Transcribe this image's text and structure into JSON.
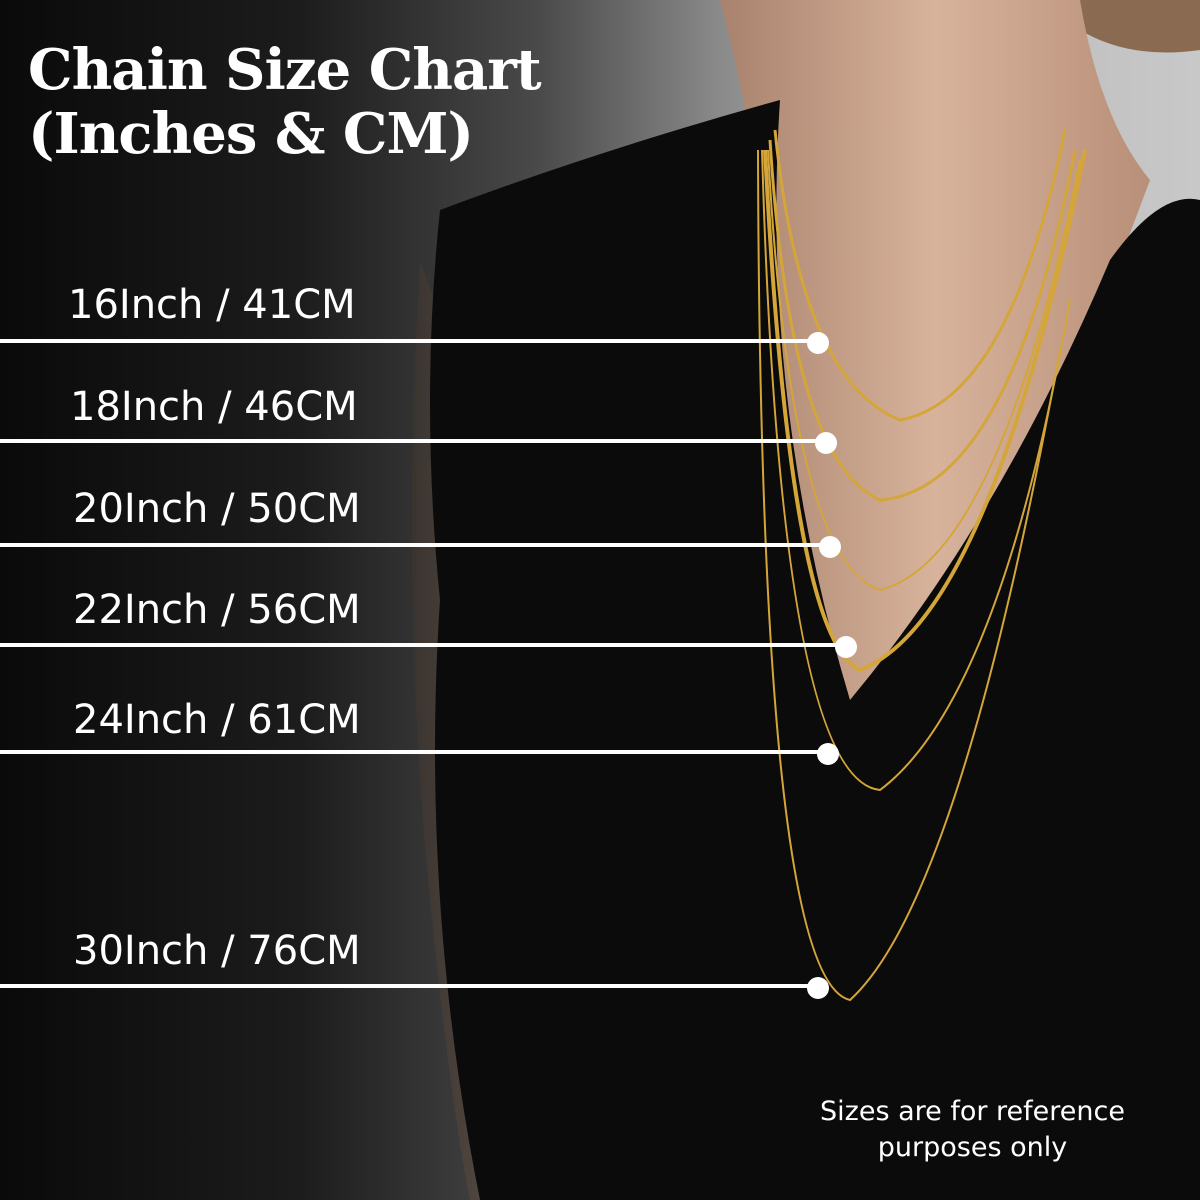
{
  "title": {
    "line1": "Chain Size Chart",
    "line2": "(Inches & CM)"
  },
  "sizes": [
    {
      "label": "16Inch / 41CM",
      "inches": 16,
      "cm": 41
    },
    {
      "label": "18Inch / 46CM",
      "inches": 18,
      "cm": 46
    },
    {
      "label": "20Inch / 50CM",
      "inches": 20,
      "cm": 50
    },
    {
      "label": "22Inch / 56CM",
      "inches": 22,
      "cm": 56
    },
    {
      "label": "24Inch / 61CM",
      "inches": 24,
      "cm": 61
    },
    {
      "label": "30Inch / 76CM",
      "inches": 30,
      "cm": 76
    }
  ],
  "note": {
    "line1": "Sizes are for reference",
    "line2": "purposes only"
  },
  "colors": {
    "chain": "#d4a63a",
    "dress": "#0b0b0b",
    "skin": "#c9a28a",
    "text": "#ffffff"
  }
}
